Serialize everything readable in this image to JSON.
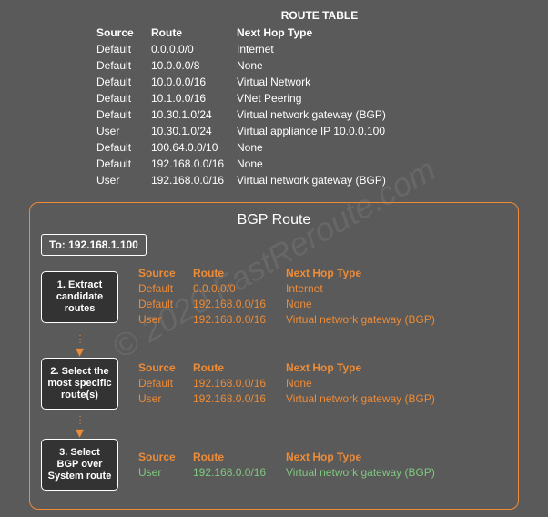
{
  "watermark": "© 2020 FastReroute.com",
  "route_table": {
    "title": "ROUTE TABLE",
    "columns": [
      "Source",
      "Route",
      "Next Hop Type"
    ],
    "rows": [
      [
        "Default",
        "0.0.0.0/0",
        "Internet"
      ],
      [
        "Default",
        "10.0.0.0/8",
        "None"
      ],
      [
        "Default",
        "10.0.0.0/16",
        "Virtual Network"
      ],
      [
        "Default",
        "10.1.0.0/16",
        "VNet Peering"
      ],
      [
        "Default",
        "10.30.1.0/24",
        "Virtual network gateway (BGP)"
      ],
      [
        "User",
        "10.30.1.0/24",
        "Virtual appliance IP 10.0.0.100"
      ],
      [
        "Default",
        "100.64.0.0/10",
        "None"
      ],
      [
        "Default",
        "192.168.0.0/16",
        "None"
      ],
      [
        "User",
        "192.168.0.0/16",
        "Virtual network gateway (BGP)"
      ]
    ]
  },
  "bgp": {
    "title": "BGP Route",
    "to_label": "To: 192.168.1.100",
    "columns": [
      "Source",
      "Route",
      "Next Hop Type"
    ],
    "steps": [
      {
        "label": "1. Extract candidate routes",
        "rows": [
          [
            "Default",
            "0.0.0.0/0",
            "Internet"
          ],
          [
            "Default",
            "192.168.0.0/16",
            "None"
          ],
          [
            "User",
            "192.168.0.0/16",
            "Virtual network gateway (BGP)"
          ]
        ],
        "highlight": []
      },
      {
        "label": "2. Select the most specific route(s)",
        "rows": [
          [
            "Default",
            "192.168.0.0/16",
            "None"
          ],
          [
            "User",
            "192.168.0.0/16",
            "Virtual network gateway (BGP)"
          ]
        ],
        "highlight": []
      },
      {
        "label": "3. Select BGP over System route",
        "rows": [
          [
            "User",
            "192.168.0.0/16",
            "Virtual network gateway (BGP)"
          ]
        ],
        "highlight": [
          0
        ]
      }
    ]
  },
  "colors": {
    "background": "#5a5a5a",
    "border": "#ee8b36",
    "text_white": "#ffffff",
    "text_orange": "#ee8b36",
    "text_green": "#7fc97f",
    "step_bg": "#333333"
  }
}
